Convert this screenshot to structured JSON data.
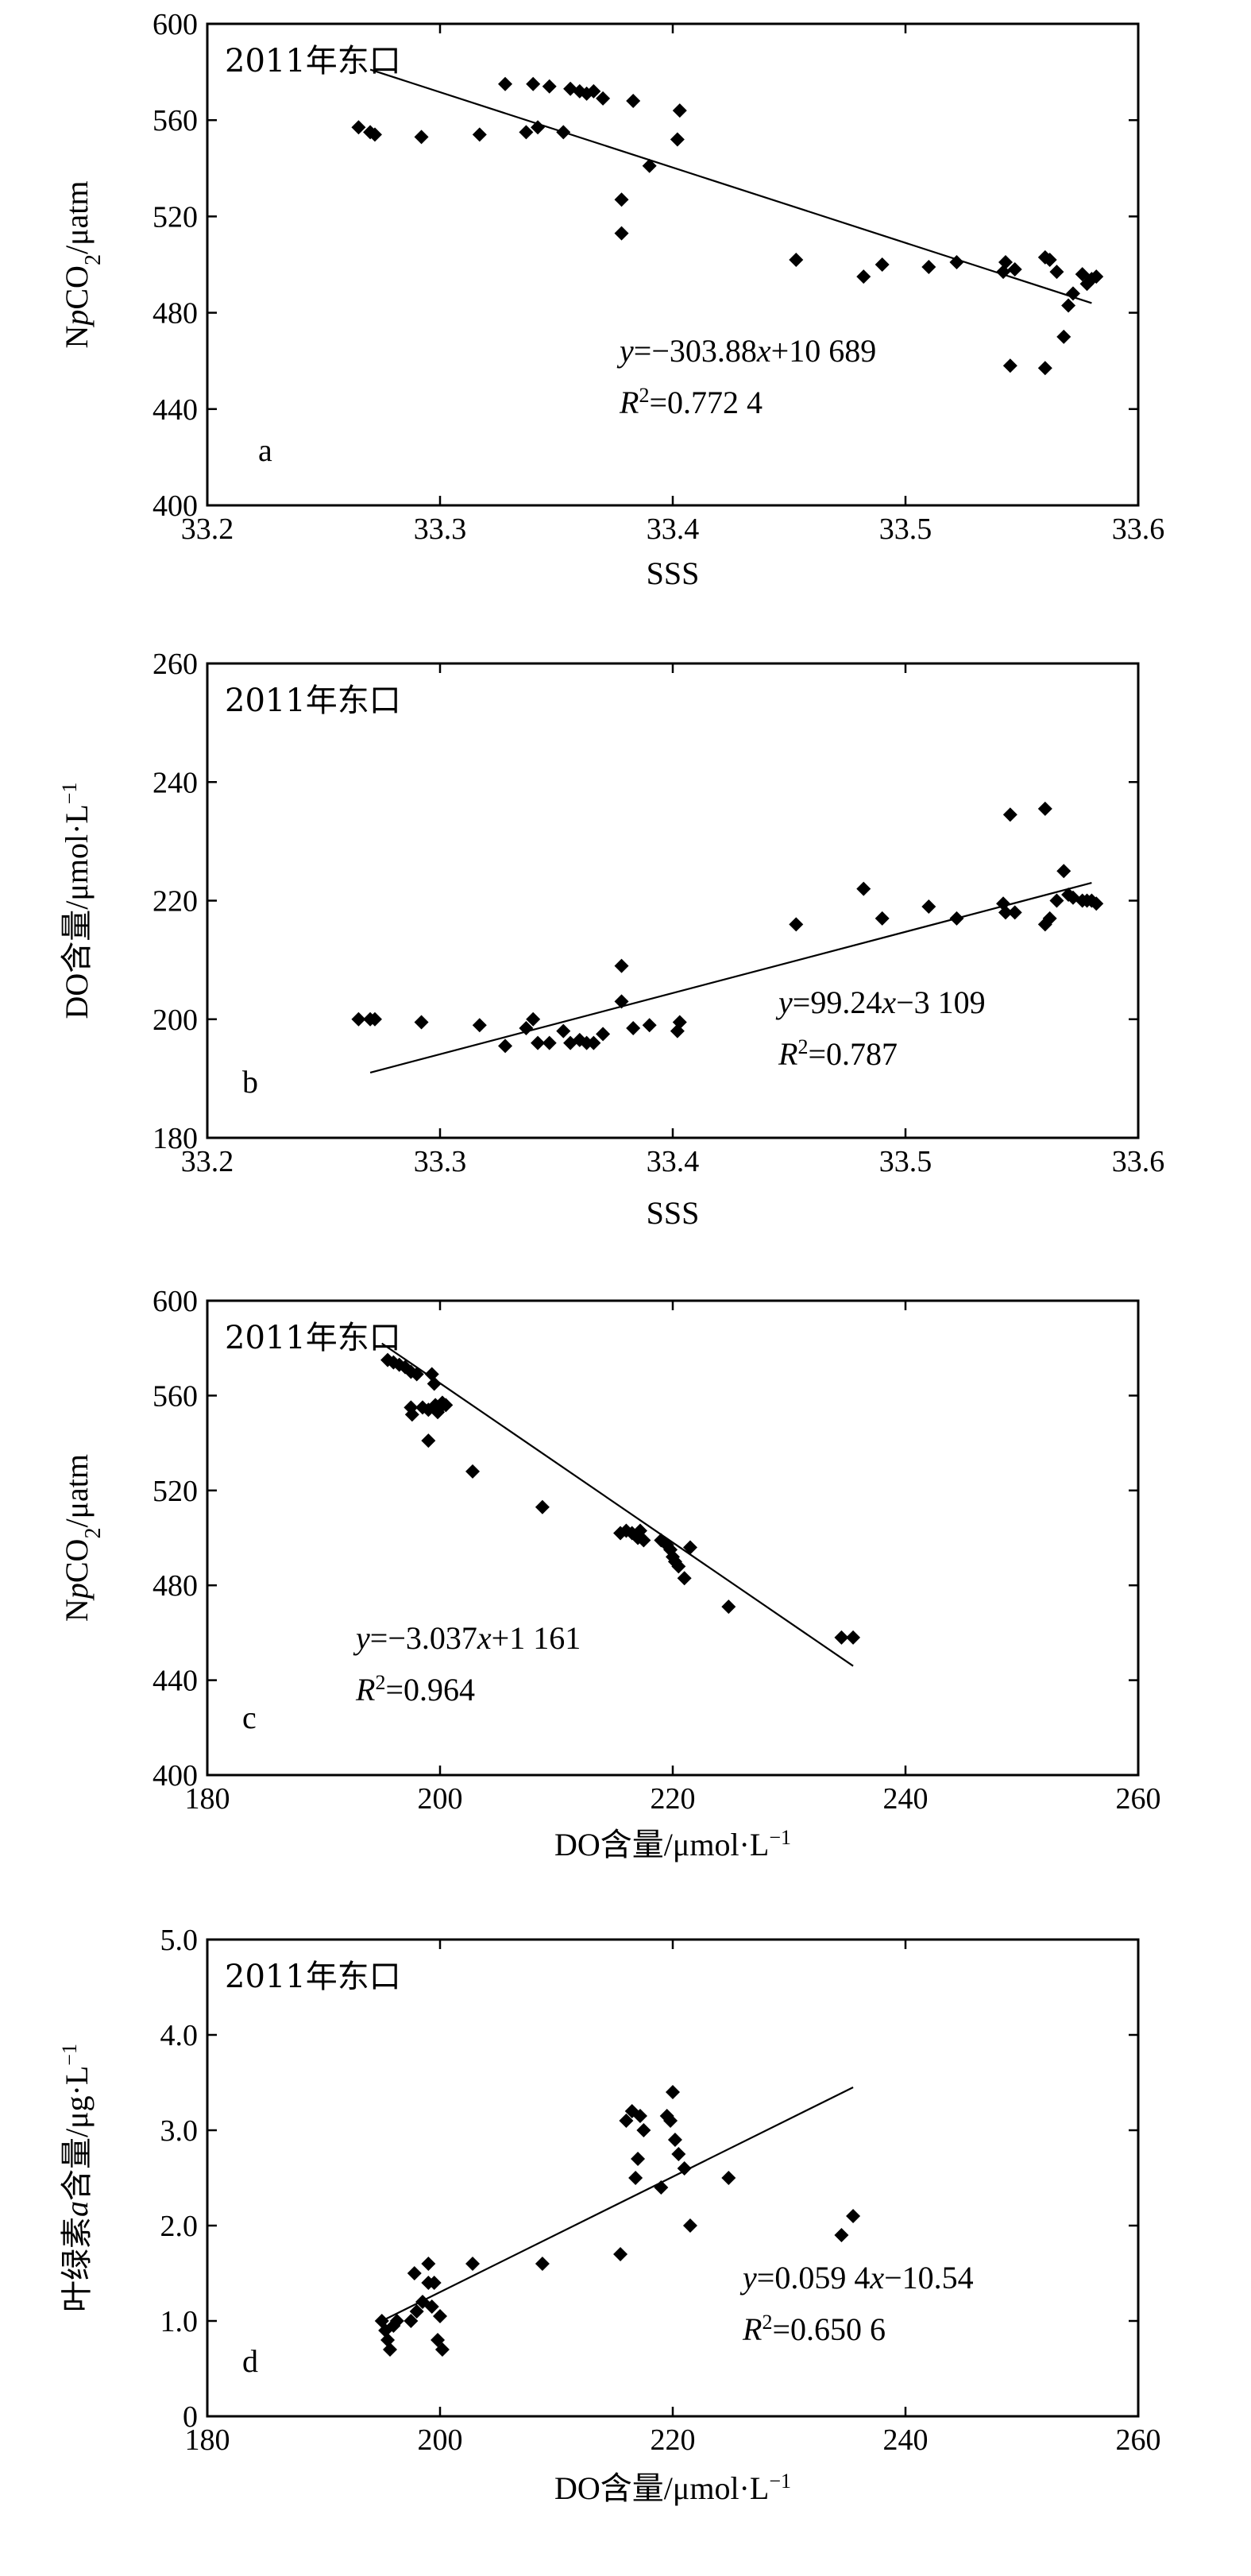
{
  "chart_data": [
    {
      "type": "scatter",
      "title": "2011年东口",
      "panel": "a",
      "xlabel": "SSS",
      "ylabel_parts": {
        "pre": "N",
        "italic": "p",
        "mid": "CO",
        "sub": "2",
        "post": "/μatm"
      },
      "xlim": [
        33.2,
        33.6
      ],
      "ylim": [
        400,
        600
      ],
      "xticks": [
        33.2,
        33.3,
        33.4,
        33.5,
        33.6
      ],
      "yticks": [
        400,
        440,
        480,
        520,
        560,
        600
      ],
      "xtick_labels": [
        "33.2",
        "33.3",
        "33.4",
        "33.5",
        "33.6"
      ],
      "ytick_labels": [
        "400",
        "440",
        "480",
        "520",
        "560",
        "600"
      ],
      "equation_parts": {
        "y": "y",
        "rhs1": "=−303.88",
        "x": "x",
        "rhs2": "+10 689"
      },
      "r2_parts": {
        "R": "R",
        "sup": "2",
        "val": "=0.772 4"
      },
      "fit": {
        "x": [
          33.27,
          33.58
        ],
        "y": [
          581,
          484
        ]
      },
      "points": [
        [
          33.265,
          557
        ],
        [
          33.27,
          555
        ],
        [
          33.272,
          554
        ],
        [
          33.292,
          553
        ],
        [
          33.317,
          554
        ],
        [
          33.328,
          575
        ],
        [
          33.337,
          555
        ],
        [
          33.34,
          575
        ],
        [
          33.342,
          557
        ],
        [
          33.347,
          574
        ],
        [
          33.353,
          555
        ],
        [
          33.356,
          573
        ],
        [
          33.36,
          572
        ],
        [
          33.363,
          571
        ],
        [
          33.366,
          572
        ],
        [
          33.37,
          569
        ],
        [
          33.378,
          527
        ],
        [
          33.378,
          513
        ],
        [
          33.383,
          568
        ],
        [
          33.39,
          541
        ],
        [
          33.402,
          552
        ],
        [
          33.403,
          564
        ],
        [
          33.453,
          502
        ],
        [
          33.482,
          495
        ],
        [
          33.49,
          500
        ],
        [
          33.51,
          499
        ],
        [
          33.522,
          501
        ],
        [
          33.542,
          497
        ],
        [
          33.543,
          501
        ],
        [
          33.545,
          458
        ],
        [
          33.547,
          498
        ],
        [
          33.56,
          503
        ],
        [
          33.56,
          457
        ],
        [
          33.562,
          502
        ],
        [
          33.565,
          497
        ],
        [
          33.568,
          470
        ],
        [
          33.57,
          483
        ],
        [
          33.572,
          488
        ],
        [
          33.576,
          496
        ],
        [
          33.578,
          492
        ],
        [
          33.58,
          494
        ],
        [
          33.582,
          495
        ]
      ]
    },
    {
      "type": "scatter",
      "title": "2011年东口",
      "panel": "b",
      "xlabel": "SSS",
      "ylabel_parts": {
        "pre": "DO含量/μmol·L",
        "sup": "−1"
      },
      "xlim": [
        33.2,
        33.6
      ],
      "ylim": [
        180,
        260
      ],
      "xticks": [
        33.2,
        33.3,
        33.4,
        33.5,
        33.6
      ],
      "yticks": [
        180,
        200,
        220,
        240,
        260
      ],
      "xtick_labels": [
        "33.2",
        "33.3",
        "33.4",
        "33.5",
        "33.6"
      ],
      "ytick_labels": [
        "180",
        "200",
        "220",
        "240",
        "260"
      ],
      "equation_parts": {
        "y": "y",
        "rhs1": "=99.24",
        "x": "x",
        "rhs2": "−3 109"
      },
      "r2_parts": {
        "R": "R",
        "sup": "2",
        "val": "=0.787"
      },
      "fit": {
        "x": [
          33.27,
          33.58
        ],
        "y": [
          191,
          223
        ]
      },
      "points": [
        [
          33.265,
          200
        ],
        [
          33.27,
          200
        ],
        [
          33.272,
          200
        ],
        [
          33.292,
          199.5
        ],
        [
          33.317,
          199
        ],
        [
          33.328,
          195.5
        ],
        [
          33.337,
          198.5
        ],
        [
          33.34,
          200
        ],
        [
          33.342,
          196
        ],
        [
          33.347,
          196
        ],
        [
          33.353,
          198
        ],
        [
          33.356,
          196
        ],
        [
          33.36,
          196.5
        ],
        [
          33.363,
          196
        ],
        [
          33.366,
          196
        ],
        [
          33.37,
          197.5
        ],
        [
          33.378,
          203
        ],
        [
          33.378,
          209
        ],
        [
          33.383,
          198.5
        ],
        [
          33.39,
          199
        ],
        [
          33.402,
          198
        ],
        [
          33.403,
          199.5
        ],
        [
          33.453,
          216
        ],
        [
          33.482,
          222
        ],
        [
          33.49,
          217
        ],
        [
          33.51,
          219
        ],
        [
          33.522,
          217
        ],
        [
          33.542,
          219.5
        ],
        [
          33.543,
          218
        ],
        [
          33.545,
          234.5
        ],
        [
          33.547,
          218
        ],
        [
          33.56,
          235.5
        ],
        [
          33.56,
          216
        ],
        [
          33.562,
          217
        ],
        [
          33.565,
          220
        ],
        [
          33.568,
          225
        ],
        [
          33.57,
          221
        ],
        [
          33.572,
          220.5
        ],
        [
          33.576,
          220
        ],
        [
          33.578,
          220
        ],
        [
          33.58,
          220
        ],
        [
          33.582,
          219.5
        ]
      ]
    },
    {
      "type": "scatter",
      "title": "2011年东口",
      "panel": "c",
      "xlabel_parts": {
        "pre": "DO含量/μmol·L",
        "sup": "−1"
      },
      "ylabel_parts": {
        "pre": "N",
        "italic": "p",
        "mid": "CO",
        "sub": "2",
        "post": "/μatm"
      },
      "xlim": [
        180,
        260
      ],
      "ylim": [
        400,
        600
      ],
      "xticks": [
        180,
        200,
        220,
        240,
        260
      ],
      "yticks": [
        400,
        440,
        480,
        520,
        560,
        600
      ],
      "xtick_labels": [
        "180",
        "200",
        "220",
        "240",
        "260"
      ],
      "ytick_labels": [
        "400",
        "440",
        "480",
        "520",
        "560",
        "600"
      ],
      "equation_parts": {
        "y": "y",
        "rhs1": "=−3.037",
        "x": "x",
        "rhs2": "+1 161"
      },
      "r2_parts": {
        "R": "R",
        "sup": "2",
        "val": "=0.964"
      },
      "fit": {
        "x": [
          195,
          235.5
        ],
        "y": [
          582,
          446
        ]
      },
      "points": [
        [
          195.5,
          575
        ],
        [
          196,
          574
        ],
        [
          196.5,
          573
        ],
        [
          197,
          572
        ],
        [
          197.5,
          570
        ],
        [
          197.5,
          555
        ],
        [
          197.6,
          552
        ],
        [
          198,
          569
        ],
        [
          198.5,
          555
        ],
        [
          199,
          541
        ],
        [
          199,
          554
        ],
        [
          199.3,
          569
        ],
        [
          199.5,
          565
        ],
        [
          199.6,
          556
        ],
        [
          199.8,
          553
        ],
        [
          200,
          555
        ],
        [
          200.2,
          557
        ],
        [
          200.5,
          556
        ],
        [
          202.8,
          528
        ],
        [
          208.8,
          513
        ],
        [
          215.5,
          502
        ],
        [
          216,
          503
        ],
        [
          216.5,
          502
        ],
        [
          216.8,
          501
        ],
        [
          217,
          500
        ],
        [
          217.2,
          503
        ],
        [
          217.5,
          499
        ],
        [
          219,
          499
        ],
        [
          219.5,
          497
        ],
        [
          219.8,
          495
        ],
        [
          220,
          492
        ],
        [
          220.2,
          490
        ],
        [
          220.5,
          488
        ],
        [
          221,
          483
        ],
        [
          221.5,
          496
        ],
        [
          224.8,
          471
        ],
        [
          234.5,
          458
        ],
        [
          235.5,
          458
        ]
      ]
    },
    {
      "type": "scatter",
      "title": "2011年东口",
      "panel": "d",
      "xlabel_parts": {
        "pre": "DO含量/μmol·L",
        "sup": "−1"
      },
      "ylabel_parts": {
        "pre": "叶绿素",
        "italic": "a",
        "post": "含量/μg·L",
        "sup": "−1"
      },
      "xlim": [
        180,
        260
      ],
      "ylim": [
        0,
        5.0
      ],
      "xticks": [
        180,
        200,
        220,
        240,
        260
      ],
      "yticks": [
        0,
        1.0,
        2.0,
        3.0,
        4.0,
        5.0
      ],
      "xtick_labels": [
        "180",
        "200",
        "220",
        "240",
        "260"
      ],
      "ytick_labels": [
        "0",
        "1.0",
        "2.0",
        "3.0",
        "4.0",
        "5.0"
      ],
      "equation_parts": {
        "y": "y",
        "rhs1": "=0.059 4",
        "x": "x",
        "rhs2": "−10.54"
      },
      "r2_parts": {
        "R": "R",
        "sup": "2",
        "val": "=0.650 6"
      },
      "fit": {
        "x": [
          195,
          235.5
        ],
        "y": [
          1.0,
          3.45
        ]
      },
      "points": [
        [
          195,
          1.0
        ],
        [
          195.3,
          0.9
        ],
        [
          195.5,
          0.8
        ],
        [
          195.7,
          0.7
        ],
        [
          196,
          0.95
        ],
        [
          196.3,
          1.0
        ],
        [
          197.5,
          1.0
        ],
        [
          197.8,
          1.5
        ],
        [
          198,
          1.1
        ],
        [
          198.5,
          1.2
        ],
        [
          199,
          1.6
        ],
        [
          199,
          1.4
        ],
        [
          199.3,
          1.15
        ],
        [
          199.5,
          1.4
        ],
        [
          199.8,
          0.8
        ],
        [
          200,
          1.05
        ],
        [
          200.2,
          0.7
        ],
        [
          202.8,
          1.6
        ],
        [
          208.8,
          1.6
        ],
        [
          215.5,
          1.7
        ],
        [
          216,
          3.1
        ],
        [
          216.5,
          3.2
        ],
        [
          216.8,
          2.5
        ],
        [
          217,
          2.7
        ],
        [
          217.2,
          3.15
        ],
        [
          217.5,
          3.0
        ],
        [
          219,
          2.4
        ],
        [
          219.5,
          3.15
        ],
        [
          219.8,
          3.1
        ],
        [
          220,
          3.4
        ],
        [
          220.2,
          2.9
        ],
        [
          220.5,
          2.75
        ],
        [
          221,
          2.6
        ],
        [
          221.5,
          2.0
        ],
        [
          224.8,
          2.5
        ],
        [
          234.5,
          1.9
        ],
        [
          235.5,
          2.1
        ]
      ]
    }
  ]
}
